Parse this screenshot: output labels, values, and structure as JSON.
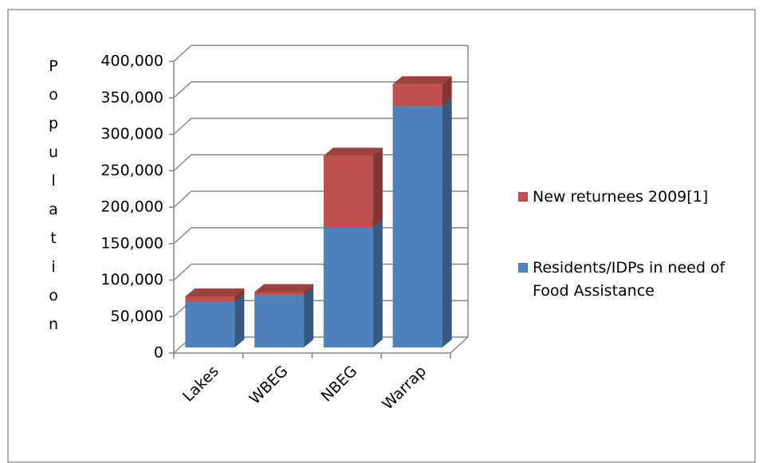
{
  "chart_data": {
    "type": "bar3d-stacked",
    "y_label": "Population",
    "categories": [
      "Lakes",
      "WBEG",
      "NBEG",
      "Warrap"
    ],
    "series": [
      {
        "name": "Residents/IDPs in need of Food Assistance",
        "color": "#4f81bd",
        "values": [
          63000,
          72000,
          165000,
          331000
        ]
      },
      {
        "name": "New returnees 2009[1]",
        "color": "#c0504d",
        "values": [
          7000,
          4000,
          98000,
          30000
        ]
      }
    ],
    "ylim": [
      0,
      400000
    ],
    "yticks": [
      0,
      {
        "value": 50000,
        "label": "50,000"
      },
      {
        "value": 100000,
        "label": "100,000"
      },
      {
        "value": 150000,
        "label": "150,000"
      },
      {
        "value": 200000,
        "label": "200,000"
      },
      {
        "value": 250000,
        "label": "250,000"
      },
      {
        "value": 300000,
        "label": "300,000"
      },
      {
        "value": 350000,
        "label": "350,000"
      },
      {
        "value": 400000,
        "label": "400,000"
      }
    ],
    "grid": true
  }
}
